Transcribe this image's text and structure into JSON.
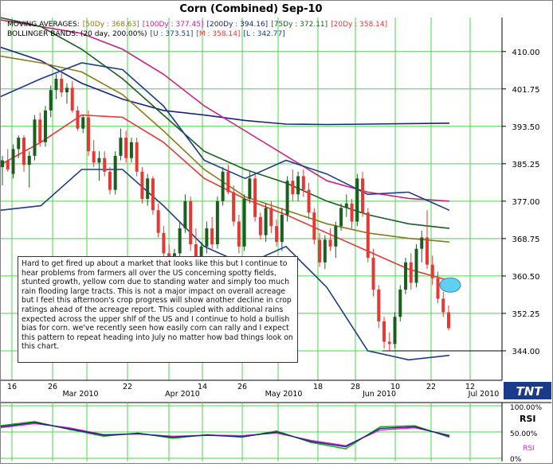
{
  "chart_data": {
    "type": "candlestick",
    "title": "Corn (Combined) Sep-10",
    "legend": {
      "moving_averages": {
        "label": "MOVING AVERAGES:",
        "entries": [
          {
            "text": "[50Dy : 368.63]",
            "color": "#8a7a1a"
          },
          {
            "text": "[100Dy : 377.45]",
            "color": "#cc2288"
          },
          {
            "text": "[200Dy : 394.16]",
            "color": "#1a237e"
          },
          {
            "text": "[75Dy : 372.11]",
            "color": "#1b5e20"
          },
          {
            "text": "[20Dy : 358.14]",
            "color": "#e53935"
          }
        ]
      },
      "bollinger": {
        "label": "BOLLINGER BANDS: (20 day, 200.00%)",
        "entries": [
          {
            "text": "[U : 373.51]",
            "color": "#1a3d8a"
          },
          {
            "text": "[M : 358.14]",
            "color": "#e53935"
          },
          {
            "text": "[L : 342.77]",
            "color": "#1a3d8a"
          }
        ]
      }
    },
    "y_ticks": [
      "410.00",
      "401.75",
      "393.50",
      "385.25",
      "377.00",
      "368.75",
      "360.50",
      "352.25",
      "344.00"
    ],
    "ylim": [
      337.5,
      417.5
    ],
    "x_day_labels": [
      "16",
      "26",
      "22",
      "14",
      "26",
      "18",
      "28",
      "10",
      "22",
      "12"
    ],
    "x_month_labels": [
      "Mar 2010",
      "Apr 2010",
      "May 2010",
      "Jun 2010",
      "Jul 2010"
    ],
    "reference_line": 344.0,
    "candles": [
      {
        "o": 384.5,
        "h": 387.0,
        "l": 380.5,
        "c": 386.0
      },
      {
        "o": 386.0,
        "h": 388.5,
        "l": 383.5,
        "c": 384.0
      },
      {
        "o": 383.0,
        "h": 389.5,
        "l": 382.0,
        "c": 388.5
      },
      {
        "o": 388.5,
        "h": 391.5,
        "l": 386.5,
        "c": 391.0
      },
      {
        "o": 391.0,
        "h": 391.5,
        "l": 383.5,
        "c": 385.0
      },
      {
        "o": 385.0,
        "h": 388.0,
        "l": 380.0,
        "c": 387.0
      },
      {
        "o": 387.0,
        "h": 396.0,
        "l": 386.0,
        "c": 395.0
      },
      {
        "o": 395.0,
        "h": 396.5,
        "l": 389.0,
        "c": 390.0
      },
      {
        "o": 390.0,
        "h": 398.0,
        "l": 389.0,
        "c": 397.0
      },
      {
        "o": 397.0,
        "h": 402.5,
        "l": 395.5,
        "c": 401.5
      },
      {
        "o": 401.5,
        "h": 405.0,
        "l": 399.5,
        "c": 404.0
      },
      {
        "o": 404.0,
        "h": 406.0,
        "l": 400.0,
        "c": 401.0
      },
      {
        "o": 401.0,
        "h": 403.0,
        "l": 398.5,
        "c": 402.0
      },
      {
        "o": 402.0,
        "h": 403.5,
        "l": 396.5,
        "c": 397.0
      },
      {
        "o": 397.0,
        "h": 398.0,
        "l": 392.5,
        "c": 393.0
      },
      {
        "o": 393.0,
        "h": 396.0,
        "l": 392.0,
        "c": 395.5
      },
      {
        "o": 395.5,
        "h": 397.0,
        "l": 387.0,
        "c": 388.0
      },
      {
        "o": 388.0,
        "h": 390.5,
        "l": 384.5,
        "c": 385.5
      },
      {
        "o": 385.5,
        "h": 388.0,
        "l": 381.5,
        "c": 386.5
      },
      {
        "o": 386.5,
        "h": 388.0,
        "l": 382.5,
        "c": 383.5
      },
      {
        "o": 383.5,
        "h": 384.5,
        "l": 378.5,
        "c": 379.5
      },
      {
        "o": 379.5,
        "h": 388.0,
        "l": 378.5,
        "c": 387.0
      },
      {
        "o": 387.0,
        "h": 393.0,
        "l": 386.0,
        "c": 391.0
      },
      {
        "o": 391.0,
        "h": 392.5,
        "l": 385.5,
        "c": 386.5
      },
      {
        "o": 386.5,
        "h": 391.0,
        "l": 385.5,
        "c": 390.0
      },
      {
        "o": 390.0,
        "h": 391.0,
        "l": 382.5,
        "c": 383.5
      },
      {
        "o": 383.5,
        "h": 384.5,
        "l": 376.5,
        "c": 377.5
      },
      {
        "o": 377.5,
        "h": 383.0,
        "l": 376.0,
        "c": 382.0
      },
      {
        "o": 382.0,
        "h": 382.5,
        "l": 374.0,
        "c": 375.0
      },
      {
        "o": 375.0,
        "h": 376.5,
        "l": 369.0,
        "c": 370.0
      },
      {
        "o": 370.0,
        "h": 371.5,
        "l": 364.0,
        "c": 365.5
      },
      {
        "o": 365.5,
        "h": 367.5,
        "l": 358.0,
        "c": 359.5
      },
      {
        "o": 359.5,
        "h": 366.5,
        "l": 358.0,
        "c": 365.5
      },
      {
        "o": 365.5,
        "h": 372.5,
        "l": 364.0,
        "c": 371.0
      },
      {
        "o": 371.0,
        "h": 378.5,
        "l": 370.0,
        "c": 377.0
      },
      {
        "o": 377.0,
        "h": 378.0,
        "l": 366.0,
        "c": 367.5
      },
      {
        "o": 367.5,
        "h": 371.0,
        "l": 361.5,
        "c": 362.5
      },
      {
        "o": 362.5,
        "h": 368.0,
        "l": 360.5,
        "c": 367.0
      },
      {
        "o": 367.0,
        "h": 372.5,
        "l": 365.5,
        "c": 371.0
      },
      {
        "o": 371.0,
        "h": 373.5,
        "l": 366.5,
        "c": 367.5
      },
      {
        "o": 367.5,
        "h": 378.0,
        "l": 366.5,
        "c": 377.0
      },
      {
        "o": 377.0,
        "h": 384.5,
        "l": 376.0,
        "c": 383.5
      },
      {
        "o": 383.5,
        "h": 385.0,
        "l": 378.5,
        "c": 379.0
      },
      {
        "o": 379.0,
        "h": 380.5,
        "l": 371.5,
        "c": 372.5
      },
      {
        "o": 372.5,
        "h": 374.0,
        "l": 365.5,
        "c": 367.0
      },
      {
        "o": 367.0,
        "h": 378.5,
        "l": 366.0,
        "c": 377.5
      },
      {
        "o": 377.5,
        "h": 383.5,
        "l": 376.5,
        "c": 382.0
      },
      {
        "o": 382.0,
        "h": 383.0,
        "l": 372.5,
        "c": 373.5
      },
      {
        "o": 373.5,
        "h": 374.5,
        "l": 368.5,
        "c": 369.5
      },
      {
        "o": 369.5,
        "h": 376.5,
        "l": 368.0,
        "c": 375.5
      },
      {
        "o": 375.5,
        "h": 377.0,
        "l": 370.0,
        "c": 371.5
      },
      {
        "o": 371.5,
        "h": 373.0,
        "l": 367.0,
        "c": 368.0
      },
      {
        "o": 368.0,
        "h": 375.5,
        "l": 366.0,
        "c": 374.0
      },
      {
        "o": 374.0,
        "h": 382.5,
        "l": 372.5,
        "c": 381.5
      },
      {
        "o": 381.5,
        "h": 384.0,
        "l": 377.0,
        "c": 378.5
      },
      {
        "o": 378.5,
        "h": 383.5,
        "l": 377.0,
        "c": 382.5
      },
      {
        "o": 382.5,
        "h": 384.0,
        "l": 378.0,
        "c": 379.5
      },
      {
        "o": 379.5,
        "h": 381.0,
        "l": 373.0,
        "c": 374.5
      },
      {
        "o": 374.5,
        "h": 375.5,
        "l": 367.5,
        "c": 368.5
      },
      {
        "o": 368.5,
        "h": 370.0,
        "l": 362.5,
        "c": 363.5
      },
      {
        "o": 363.5,
        "h": 369.5,
        "l": 362.0,
        "c": 368.5
      },
      {
        "o": 368.5,
        "h": 371.0,
        "l": 366.0,
        "c": 367.0
      },
      {
        "o": 367.0,
        "h": 372.5,
        "l": 364.5,
        "c": 371.5
      },
      {
        "o": 371.5,
        "h": 376.5,
        "l": 370.5,
        "c": 375.5
      },
      {
        "o": 375.5,
        "h": 378.5,
        "l": 373.5,
        "c": 376.5
      },
      {
        "o": 376.5,
        "h": 377.5,
        "l": 371.0,
        "c": 372.5
      },
      {
        "o": 372.5,
        "h": 383.0,
        "l": 371.5,
        "c": 382.0
      },
      {
        "o": 382.0,
        "h": 383.5,
        "l": 373.5,
        "c": 374.5
      },
      {
        "o": 374.5,
        "h": 375.5,
        "l": 363.5,
        "c": 364.5
      },
      {
        "o": 364.5,
        "h": 366.5,
        "l": 356.0,
        "c": 357.5
      },
      {
        "o": 357.5,
        "h": 358.5,
        "l": 349.0,
        "c": 350.5
      },
      {
        "o": 350.5,
        "h": 351.5,
        "l": 344.5,
        "c": 346.0
      },
      {
        "o": 346.0,
        "h": 348.0,
        "l": 344.0,
        "c": 345.5
      },
      {
        "o": 345.5,
        "h": 352.5,
        "l": 344.5,
        "c": 351.5
      },
      {
        "o": 351.5,
        "h": 358.5,
        "l": 350.5,
        "c": 357.5
      },
      {
        "o": 357.5,
        "h": 364.5,
        "l": 356.5,
        "c": 363.5
      },
      {
        "o": 363.5,
        "h": 365.5,
        "l": 357.5,
        "c": 359.0
      },
      {
        "o": 359.0,
        "h": 367.5,
        "l": 358.0,
        "c": 366.5
      },
      {
        "o": 366.5,
        "h": 370.5,
        "l": 363.5,
        "c": 369.0
      },
      {
        "o": 369.0,
        "h": 375.0,
        "l": 362.0,
        "c": 363.0
      },
      {
        "o": 363.0,
        "h": 365.0,
        "l": 358.5,
        "c": 360.0
      },
      {
        "o": 360.0,
        "h": 361.5,
        "l": 354.5,
        "c": 355.5
      },
      {
        "o": 355.5,
        "h": 357.0,
        "l": 351.5,
        "c": 352.5
      },
      {
        "o": 352.5,
        "h": 354.0,
        "l": 348.5,
        "c": 349.0
      }
    ],
    "ma_series": [
      {
        "key": "200Dy",
        "color": "#1a237e",
        "values": [
          411.0,
          408.0,
          403.0,
          399.5,
          397.0,
          396.0,
          394.8,
          394.0,
          393.9,
          394.0,
          394.1,
          394.2
        ]
      },
      {
        "key": "100Dy",
        "color": "#cc2288",
        "values": [
          417.0,
          415.5,
          414.0,
          410.5,
          405.0,
          398.0,
          392.5,
          387.0,
          381.5,
          379.0,
          377.6,
          377.0
        ]
      },
      {
        "key": "75Dy",
        "color": "#1b5e20",
        "values": [
          417.5,
          415.5,
          410.5,
          404.0,
          396.0,
          388.0,
          384.0,
          381.0,
          377.0,
          374.0,
          372.0,
          371.0
        ]
      },
      {
        "key": "50Dy",
        "color": "#8a7a1a",
        "values": [
          409.0,
          407.5,
          405.5,
          400.5,
          392.5,
          384.0,
          378.0,
          375.0,
          372.0,
          370.0,
          368.8,
          368.0
        ]
      },
      {
        "key": "20Dy",
        "color": "#e53935",
        "values": [
          385.0,
          390.0,
          396.0,
          395.5,
          390.0,
          382.0,
          377.5,
          374.0,
          370.0,
          366.0,
          362.0,
          359.5
        ]
      },
      {
        "key": "BB-U",
        "color": "#1a3d8a",
        "values": [
          400.0,
          404.0,
          407.5,
          406.0,
          398.0,
          386.0,
          382.0,
          386.0,
          383.0,
          378.5,
          379.0,
          375.0
        ]
      },
      {
        "key": "BB-L",
        "color": "#1a3d8a",
        "values": [
          375.0,
          376.0,
          384.0,
          384.0,
          376.0,
          367.0,
          363.0,
          367.0,
          358.0,
          344.0,
          342.0,
          343.0
        ]
      }
    ],
    "rsi": {
      "label": "RSI",
      "legend_label": "RSI",
      "ticks": [
        "100.00%",
        "50.00%",
        "0%"
      ],
      "series": [
        {
          "color": "#11aa11",
          "values": [
            62,
            70,
            55,
            42,
            48,
            38,
            45,
            40,
            52,
            30,
            18,
            60,
            62,
            40
          ]
        },
        {
          "color": "#dd22dd",
          "values": [
            58,
            66,
            58,
            45,
            46,
            42,
            44,
            43,
            48,
            34,
            24,
            54,
            58,
            44
          ]
        },
        {
          "color": "#1a237e",
          "values": [
            60,
            68,
            56,
            44,
            47,
            40,
            44,
            41,
            50,
            32,
            22,
            57,
            60,
            42
          ]
        }
      ]
    }
  },
  "annotation": {
    "text": "Hard to get fired up about a market that looks like this but I continue to hear problems from farmers all over the US concerning spotty fields, stunted growth, yellow corn due to standing water and simply too much rain flooding large tracts. This is not a major impact on overall acreage but I feel this afternoon's crop progress will show another decline in crop ratings ahead of the acreage report. This coupled with additional rains expected across the upper shlf of the US and I continue to hold a bullish bias for corn. we've recently seen how easily corn can rally and I expect this pattern to repeat heading into July no matter how bad things look on this chart."
  },
  "logo": {
    "text": "TNT"
  },
  "colors": {
    "grid": "#4cd44c",
    "up": "#1b5e20",
    "down": "#e53935",
    "highlight": "#5fd0f0"
  }
}
